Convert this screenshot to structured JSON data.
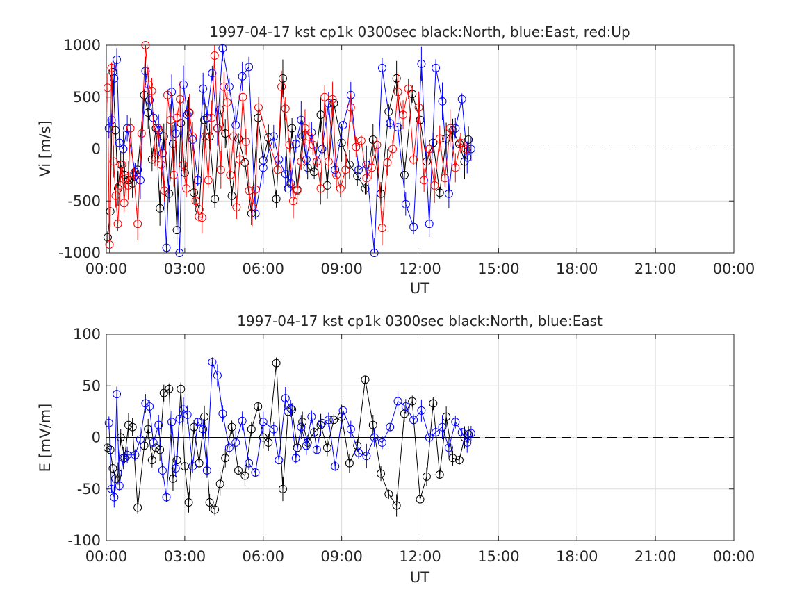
{
  "chart_data": [
    {
      "type": "scatter",
      "title": "1997-04-17 kst cp1k 0300sec black:North, blue:East, red:Up",
      "xlabel": "UT",
      "ylabel": "Vi [m/s]",
      "xlim": [
        0,
        24
      ],
      "ylim": [
        -1000,
        1000
      ],
      "x_tick_values": [
        0,
        3,
        6,
        9,
        12,
        15,
        18,
        21,
        24
      ],
      "x_tick_labels": [
        "00:00",
        "03:00",
        "06:00",
        "09:00",
        "12:00",
        "15:00",
        "18:00",
        "21:00",
        "00:00"
      ],
      "y_tick_values": [
        1000,
        500,
        0,
        -500,
        -1000
      ],
      "y_tick_labels": [
        "1000",
        "500",
        "0",
        "-500",
        "-1000"
      ],
      "grid": true,
      "zero_line": {
        "style": "dashed",
        "color": "#000000",
        "from": 13.9,
        "to": 24
      },
      "series": [
        {
          "name": "North",
          "color": "#000000",
          "x": [
            0.05,
            0.15,
            0.25,
            0.35,
            0.45,
            0.55,
            0.7,
            0.85,
            1.0,
            1.2,
            1.45,
            1.6,
            1.75,
            1.9,
            2.05,
            2.2,
            2.4,
            2.55,
            2.7,
            2.85,
            3.0,
            3.15,
            3.35,
            3.55,
            3.75,
            3.95,
            4.15,
            4.35,
            4.55,
            4.8,
            5.05,
            5.3,
            5.55,
            5.8,
            6.0,
            6.2,
            6.5,
            6.75,
            6.95,
            7.1,
            7.3,
            7.5,
            7.7,
            7.95,
            8.2,
            8.45,
            8.7,
            9.0,
            9.3,
            9.6,
            9.9,
            10.2,
            10.5,
            10.8,
            11.1,
            11.4,
            11.7,
            12.0,
            12.25,
            12.5,
            12.75,
            13.0,
            13.25,
            13.5,
            13.7,
            13.85
          ],
          "y": [
            -850,
            -600,
            740,
            180,
            -380,
            -150,
            -250,
            -300,
            -330,
            -200,
            520,
            350,
            -100,
            200,
            -570,
            120,
            -430,
            50,
            -780,
            250,
            -230,
            350,
            -420,
            -580,
            280,
            120,
            -480,
            380,
            150,
            -450,
            100,
            -130,
            -620,
            300,
            -110,
            110,
            -480,
            680,
            -380,
            200,
            -390,
            120,
            -180,
            -220,
            330,
            -350,
            440,
            60,
            -150,
            -260,
            -380,
            90,
            -430,
            360,
            680,
            -250,
            530,
            280,
            -120,
            60,
            -420,
            100,
            180,
            50,
            -120,
            90
          ]
        },
        {
          "name": "East",
          "color": "#0000ff",
          "x": [
            0.1,
            0.2,
            0.3,
            0.4,
            0.5,
            0.65,
            0.8,
            1.1,
            1.3,
            1.5,
            1.65,
            1.8,
            2.0,
            2.15,
            2.3,
            2.5,
            2.65,
            2.8,
            2.95,
            3.1,
            3.3,
            3.5,
            3.7,
            3.85,
            4.05,
            4.25,
            4.45,
            4.7,
            4.95,
            5.2,
            5.45,
            5.7,
            6.0,
            6.4,
            6.6,
            6.85,
            7.05,
            7.25,
            7.45,
            7.65,
            7.85,
            8.05,
            8.25,
            8.5,
            8.75,
            9.05,
            9.35,
            9.65,
            9.95,
            10.25,
            10.55,
            10.85,
            11.15,
            11.45,
            11.75,
            12.05,
            12.35,
            12.6,
            12.85,
            13.1,
            13.35,
            13.6,
            13.8,
            13.95
          ],
          "y": [
            200,
            280,
            680,
            860,
            60,
            0,
            200,
            -220,
            -300,
            750,
            470,
            300,
            180,
            -40,
            -950,
            550,
            150,
            -1000,
            620,
            330,
            90,
            -300,
            580,
            300,
            730,
            200,
            970,
            600,
            230,
            700,
            790,
            -620,
            -180,
            120,
            -100,
            -240,
            -330,
            50,
            280,
            -100,
            160,
            -120,
            0,
            440,
            -200,
            230,
            520,
            -200,
            -150,
            -1000,
            780,
            250,
            210,
            -530,
            -750,
            820,
            -720,
            780,
            460,
            -430,
            200,
            480,
            -80,
            0
          ]
        },
        {
          "name": "Up",
          "color": "#ff0000",
          "x": [
            0.05,
            0.12,
            0.2,
            0.28,
            0.36,
            0.44,
            0.52,
            0.6,
            0.68,
            0.76,
            0.84,
            0.92,
            1.05,
            1.2,
            1.35,
            1.5,
            1.62,
            1.74,
            1.86,
            1.98,
            2.1,
            2.22,
            2.34,
            2.46,
            2.58,
            2.7,
            2.82,
            2.94,
            3.06,
            3.18,
            3.3,
            3.42,
            3.54,
            3.66,
            3.78,
            3.9,
            4.02,
            4.14,
            4.26,
            4.38,
            4.5,
            4.62,
            4.74,
            4.86,
            4.98,
            5.1,
            5.22,
            5.34,
            5.46,
            5.58,
            5.7,
            5.82,
            6.55,
            6.7,
            6.85,
            7.0,
            7.15,
            7.3,
            7.45,
            7.6,
            7.75,
            7.9,
            8.05,
            8.2,
            8.35,
            8.5,
            8.65,
            8.8,
            8.95,
            9.15,
            9.35,
            9.55,
            9.75,
            9.95,
            10.15,
            10.35,
            10.55,
            10.75,
            10.95,
            11.15,
            11.35,
            11.55,
            11.75,
            11.95,
            12.15,
            12.35,
            12.55,
            12.75,
            12.95,
            13.15,
            13.35,
            13.55,
            13.75
          ],
          "y": [
            590,
            -920,
            780,
            -120,
            -450,
            -720,
            -350,
            -150,
            -520,
            -280,
            -350,
            200,
            -240,
            -720,
            150,
            1000,
            620,
            560,
            -80,
            200,
            -150,
            -400,
            520,
            280,
            -250,
            300,
            480,
            -150,
            -380,
            350,
            120,
            -500,
            -650,
            -660,
            120,
            -300,
            300,
            900,
            200,
            -200,
            600,
            450,
            -250,
            120,
            -560,
            -100,
            500,
            70,
            -400,
            -560,
            -390,
            400,
            -200,
            600,
            390,
            40,
            -500,
            -400,
            -120,
            200,
            120,
            40,
            -120,
            -380,
            500,
            -120,
            480,
            -250,
            -380,
            -200,
            400,
            20,
            80,
            -280,
            -180,
            40,
            -760,
            -130,
            0,
            550,
            330,
            580,
            -100,
            400,
            -300,
            0,
            -350,
            100,
            -280,
            200,
            -180,
            60,
            0
          ]
        }
      ]
    },
    {
      "type": "scatter",
      "title": "1997-04-17 kst cp1k 0300sec black:North, blue:East",
      "xlabel": "UT",
      "ylabel": "E [mV/m]",
      "xlim": [
        0,
        24
      ],
      "ylim": [
        -100,
        100
      ],
      "x_tick_values": [
        0,
        3,
        6,
        9,
        12,
        15,
        18,
        21,
        24
      ],
      "x_tick_labels": [
        "00:00",
        "03:00",
        "06:00",
        "09:00",
        "12:00",
        "15:00",
        "18:00",
        "21:00",
        "00:00"
      ],
      "y_tick_values": [
        100,
        50,
        0,
        -50,
        -100
      ],
      "y_tick_labels": [
        "100",
        "50",
        "0",
        "-50",
        "-100"
      ],
      "grid": true,
      "zero_line": {
        "style": "dashed",
        "color": "#000000",
        "from": 13.9,
        "to": 24
      },
      "series": [
        {
          "name": "North",
          "color": "#000000",
          "x": [
            0.05,
            0.15,
            0.25,
            0.35,
            0.45,
            0.55,
            0.7,
            0.85,
            1.0,
            1.2,
            1.45,
            1.6,
            1.75,
            1.9,
            2.05,
            2.2,
            2.4,
            2.55,
            2.7,
            2.85,
            3.0,
            3.15,
            3.35,
            3.55,
            3.75,
            3.95,
            4.15,
            4.35,
            4.55,
            4.8,
            5.05,
            5.3,
            5.55,
            5.8,
            6.0,
            6.2,
            6.5,
            6.75,
            6.95,
            7.1,
            7.3,
            7.5,
            7.7,
            7.95,
            8.2,
            8.45,
            8.7,
            9.0,
            9.3,
            9.6,
            9.9,
            10.2,
            10.5,
            10.8,
            11.1,
            11.4,
            11.7,
            12.0,
            12.25,
            12.5,
            12.75,
            13.0,
            13.25,
            13.5,
            13.7,
            13.85
          ],
          "y": [
            -10,
            -12,
            -30,
            -40,
            -35,
            0,
            -20,
            12,
            10,
            -68,
            -8,
            8,
            -22,
            -10,
            -12,
            43,
            47,
            -40,
            -22,
            47,
            -28,
            -63,
            10,
            -25,
            20,
            -63,
            -70,
            -45,
            -20,
            10,
            -32,
            -37,
            8,
            30,
            0,
            -5,
            72,
            -50,
            25,
            27,
            -10,
            15,
            -5,
            5,
            12,
            -10,
            17,
            20,
            -25,
            -8,
            56,
            12,
            -35,
            -55,
            -66,
            23,
            35,
            -60,
            -38,
            33,
            -36,
            20,
            -20,
            -22,
            0,
            3
          ]
        },
        {
          "name": "East",
          "color": "#0000ff",
          "x": [
            0.1,
            0.2,
            0.3,
            0.4,
            0.5,
            0.65,
            0.8,
            1.1,
            1.3,
            1.5,
            1.65,
            1.8,
            2.0,
            2.15,
            2.3,
            2.5,
            2.65,
            2.8,
            2.95,
            3.1,
            3.3,
            3.5,
            3.7,
            3.85,
            4.05,
            4.25,
            4.45,
            4.7,
            4.95,
            5.2,
            5.45,
            5.7,
            6.0,
            6.4,
            6.6,
            6.85,
            7.05,
            7.25,
            7.45,
            7.65,
            7.85,
            8.05,
            8.25,
            8.5,
            8.75,
            9.05,
            9.35,
            9.65,
            9.95,
            10.25,
            10.55,
            10.85,
            11.15,
            11.45,
            11.75,
            12.05,
            12.35,
            12.6,
            12.85,
            13.1,
            13.35,
            13.6,
            13.8,
            13.95
          ],
          "y": [
            14,
            -50,
            -58,
            42,
            -47,
            -20,
            -17,
            -17,
            -2,
            33,
            30,
            -5,
            12,
            -32,
            -58,
            15,
            -30,
            18,
            27,
            22,
            -28,
            15,
            8,
            -32,
            73,
            60,
            23,
            -10,
            -5,
            16,
            -25,
            -34,
            15,
            8,
            -22,
            38,
            28,
            -20,
            10,
            -8,
            20,
            -12,
            14,
            17,
            -28,
            26,
            8,
            -15,
            -18,
            0,
            -5,
            10,
            35,
            30,
            17,
            26,
            0,
            5,
            10,
            -10,
            15,
            5,
            -5,
            4
          ]
        }
      ]
    }
  ]
}
